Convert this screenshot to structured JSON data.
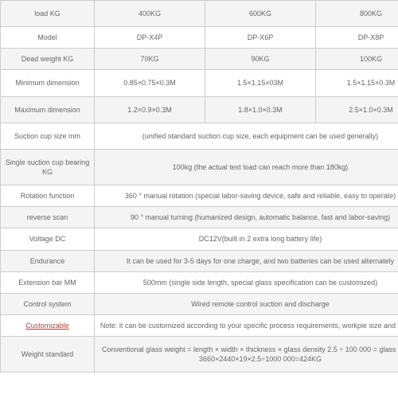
{
  "header": {
    "c1": "load KG",
    "c2": "400KG",
    "c3": "600KG",
    "c4": "800KG"
  },
  "model": {
    "label": "Model",
    "c2": "DP-X4P",
    "c3": "DP-X6P",
    "c4": "DP-X8P"
  },
  "deadweight": {
    "label": "Dead weight KG",
    "c2": "70KG",
    "c3": "90KG",
    "c4": "100KG"
  },
  "mindim": {
    "label": "Minimum dimension",
    "c2": "0.85×0.75×0.3M",
    "c3": "1.5×1.15×03M",
    "c4": "1.5×1.15×0.3M"
  },
  "maxdim": {
    "label": "Maximum dimension",
    "c2": "1.2×0.9×0.3M",
    "c3": "1.8×1.0×0.3M",
    "c4": "2.5×1.0×0.3M"
  },
  "cupsize": {
    "label": "Suction cup size mm",
    "value": "(unified standard suction cup size, each equipment can be used generally)"
  },
  "singlecup": {
    "label": "Single suction cup bearing KG",
    "value": "100kg (the actual test load can reach more than 180kg)"
  },
  "rotation": {
    "label": "Rotation function",
    "value": "360 ° manual rotation (special labor-saving device, safe and reliable, easy to operate)"
  },
  "reverse": {
    "label": "reverse scan",
    "value": "90 ° manual turning (humanized design, automatic balance, fast and labor-saving)"
  },
  "voltage": {
    "label": "Voltage DC",
    "value": "DC12V(built in 2 extra long battery life)"
  },
  "endurance": {
    "label": "Endurance",
    "value": "It can be used for 3-5 days for one charge, and two batteries can be used alternately"
  },
  "extbar": {
    "label": "Extension bar MM",
    "value": "500mm (single side length, special glass specification can be customized)"
  },
  "control": {
    "label": "Control system",
    "value": "Wired remote control suction and discharge"
  },
  "custom": {
    "label": "Customizable",
    "value": "Note: it can be customized according to your specific process requirements, workpie size and weight."
  },
  "weightstd": {
    "label": "Weight standard",
    "value": "Conventional glass weight = length  ×  width  ×  thickness  ×  glass density 2.5  ÷  100 000 = glass weight\n3660×2440×19×2.5÷1000 000=424KG"
  }
}
